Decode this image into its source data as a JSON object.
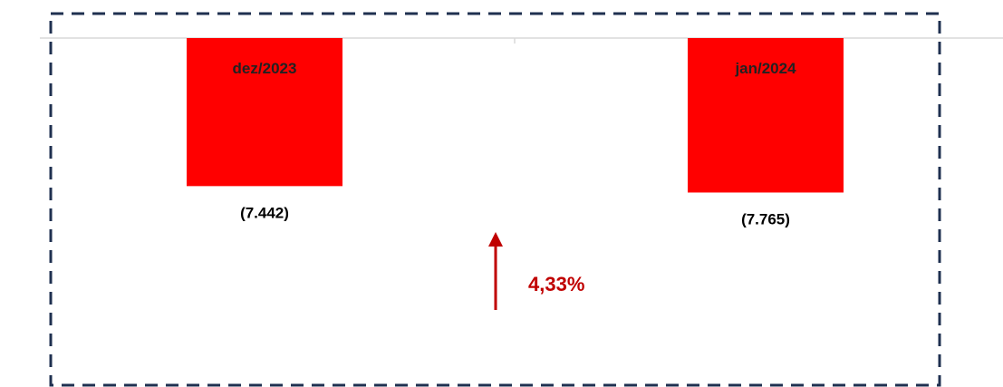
{
  "chart_data": {
    "type": "bar",
    "categories": [
      "dez/2023",
      "jan/2024"
    ],
    "values": [
      -7442,
      -7765
    ],
    "value_labels": [
      "(7.442)",
      "(7.765)"
    ],
    "title": "",
    "xlabel": "",
    "ylabel": "",
    "ylim": [
      -20000,
      0
    ],
    "grid": false,
    "legend": "none",
    "annotation": {
      "text": "4,33%",
      "direction": "up"
    }
  },
  "colors": {
    "bar": "#ff0000",
    "annotation": "#c00000",
    "frame": "#1f3050",
    "axis": "#d9d9d9"
  }
}
